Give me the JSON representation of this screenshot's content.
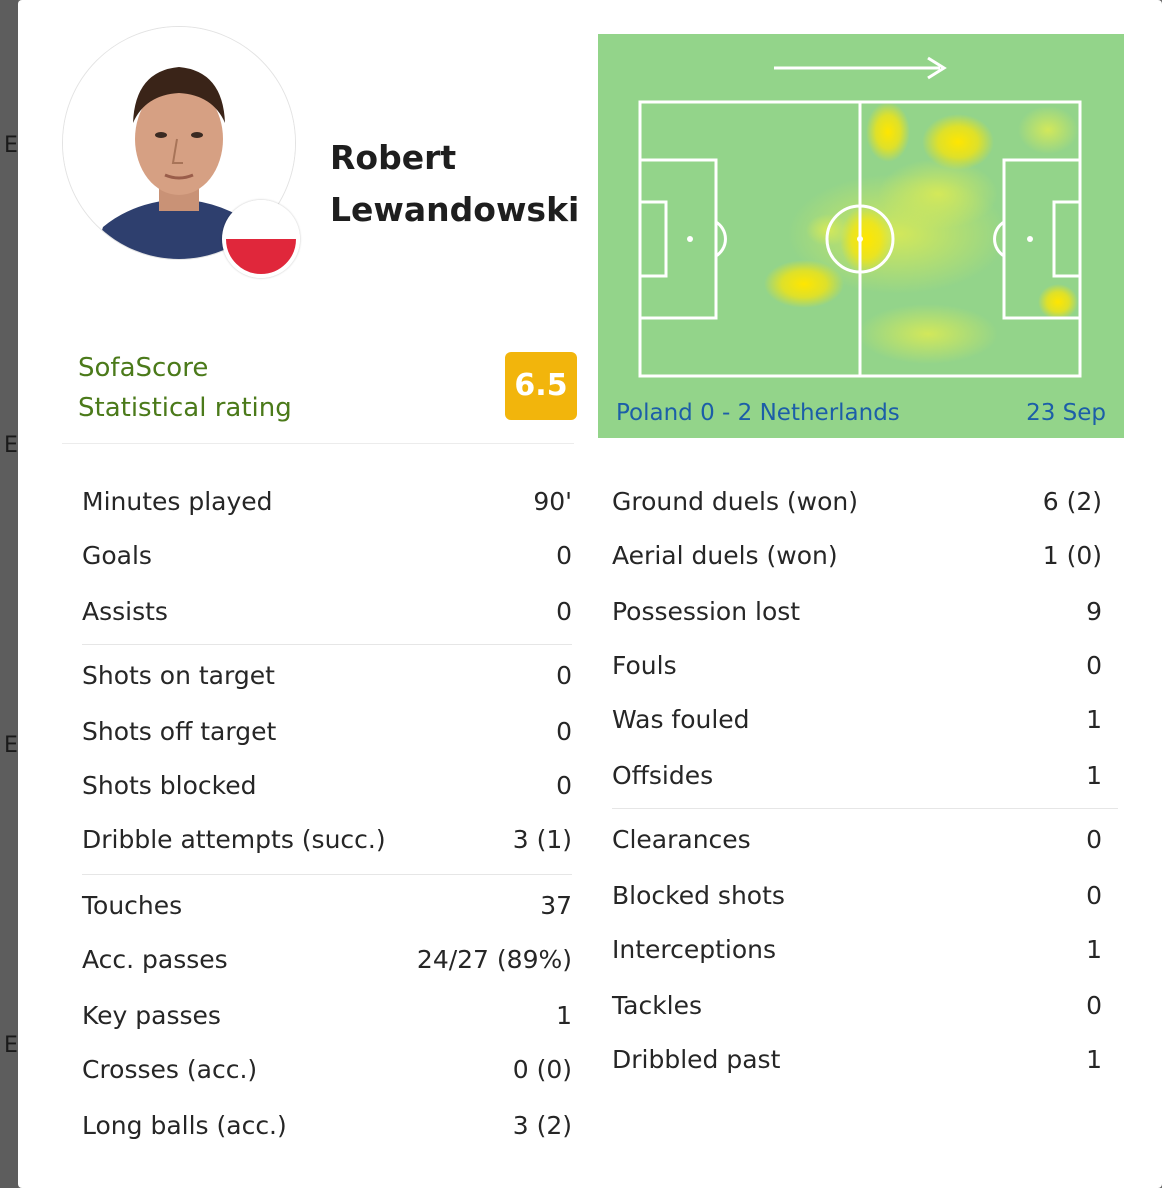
{
  "player": {
    "name": "Robert Lewandowski",
    "flag_colors": [
      "#ffffff",
      "#e0273b"
    ]
  },
  "rating": {
    "label_line1": "SofaScore",
    "label_line2": "Statistical rating",
    "value": "6.5",
    "badge_color": "#f2b50c"
  },
  "heatmap": {
    "direction_icon": "arrow-right-icon",
    "match": "Poland 0 - 2 Netherlands",
    "date": "23 Sep",
    "pitch_color": "#93d48a"
  },
  "stats_left": [
    {
      "label": "Minutes played",
      "value": "90'"
    },
    {
      "label": "Goals",
      "value": "0"
    },
    {
      "label": "Assists",
      "value": "0"
    },
    {
      "label": "Shots on target",
      "value": "0"
    },
    {
      "label": "Shots off target",
      "value": "0"
    },
    {
      "label": "Shots blocked",
      "value": "0"
    },
    {
      "label": "Dribble attempts (succ.)",
      "value": "3 (1)"
    },
    {
      "label": "Touches",
      "value": "37"
    },
    {
      "label": "Acc. passes",
      "value": "24/27 (89%)"
    },
    {
      "label": "Key passes",
      "value": "1"
    },
    {
      "label": "Crosses (acc.)",
      "value": "0 (0)"
    },
    {
      "label": "Long balls (acc.)",
      "value": "3 (2)"
    }
  ],
  "stats_right": [
    {
      "label": "Ground duels (won)",
      "value": "6 (2)"
    },
    {
      "label": "Aerial duels (won)",
      "value": "1 (0)"
    },
    {
      "label": "Possession lost",
      "value": "9"
    },
    {
      "label": "Fouls",
      "value": "0"
    },
    {
      "label": "Was fouled",
      "value": "1"
    },
    {
      "label": "Offsides",
      "value": "1"
    },
    {
      "label": "Clearances",
      "value": "0"
    },
    {
      "label": "Blocked shots",
      "value": "0"
    },
    {
      "label": "Interceptions",
      "value": "1"
    },
    {
      "label": "Tackles",
      "value": "0"
    },
    {
      "label": "Dribbled past",
      "value": "1"
    }
  ]
}
